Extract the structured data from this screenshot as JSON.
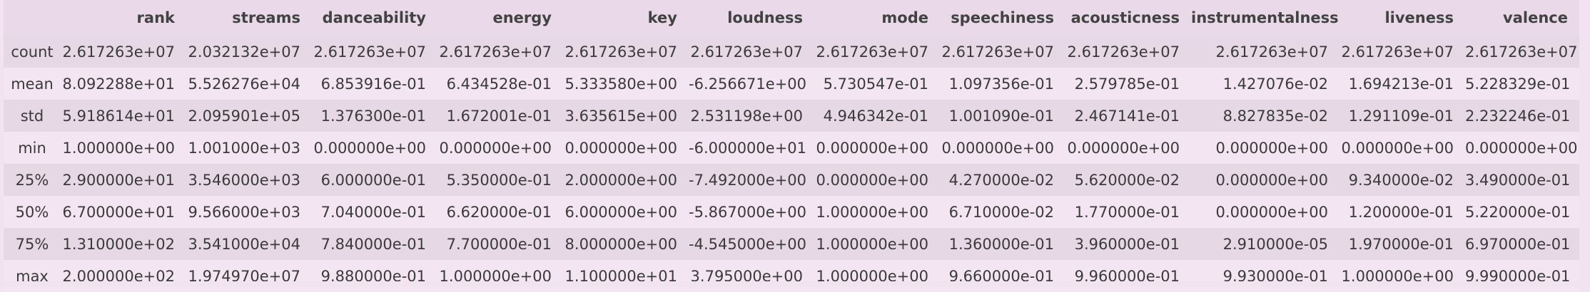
{
  "table": {
    "columns": [
      "",
      "rank",
      "streams",
      "danceability",
      "energy",
      "key",
      "loudness",
      "mode",
      "speechiness",
      "acousticness",
      "instrumentalness",
      "liveness",
      "valence"
    ],
    "rows": [
      {
        "label": "count",
        "values": [
          "2.617263e+07",
          "2.032132e+07",
          "2.617263e+07",
          "2.617263e+07",
          "2.617263e+07",
          "2.617263e+07",
          "2.617263e+07",
          "2.617263e+07",
          "2.617263e+07",
          "2.617263e+07",
          "2.617263e+07",
          "2.617263e+07"
        ]
      },
      {
        "label": "mean",
        "values": [
          "8.092288e+01",
          "5.526276e+04",
          "6.853916e-01",
          "6.434528e-01",
          "5.333580e+00",
          "-6.256671e+00",
          "5.730547e-01",
          "1.097356e-01",
          "2.579785e-01",
          "1.427076e-02",
          "1.694213e-01",
          "5.228329e-01"
        ]
      },
      {
        "label": "std",
        "values": [
          "5.918614e+01",
          "2.095901e+05",
          "1.376300e-01",
          "1.672001e-01",
          "3.635615e+00",
          "2.531198e+00",
          "4.946342e-01",
          "1.001090e-01",
          "2.467141e-01",
          "8.827835e-02",
          "1.291109e-01",
          "2.232246e-01"
        ]
      },
      {
        "label": "min",
        "values": [
          "1.000000e+00",
          "1.001000e+03",
          "0.000000e+00",
          "0.000000e+00",
          "0.000000e+00",
          "-6.000000e+01",
          "0.000000e+00",
          "0.000000e+00",
          "0.000000e+00",
          "0.000000e+00",
          "0.000000e+00",
          "0.000000e+00"
        ]
      },
      {
        "label": "25%",
        "values": [
          "2.900000e+01",
          "3.546000e+03",
          "6.000000e-01",
          "5.350000e-01",
          "2.000000e+00",
          "-7.492000e+00",
          "0.000000e+00",
          "4.270000e-02",
          "5.620000e-02",
          "0.000000e+00",
          "9.340000e-02",
          "3.490000e-01"
        ]
      },
      {
        "label": "50%",
        "values": [
          "6.700000e+01",
          "9.566000e+03",
          "7.040000e-01",
          "6.620000e-01",
          "6.000000e+00",
          "-5.867000e+00",
          "1.000000e+00",
          "6.710000e-02",
          "1.770000e-01",
          "0.000000e+00",
          "1.200000e-01",
          "5.220000e-01"
        ]
      },
      {
        "label": "75%",
        "values": [
          "1.310000e+02",
          "3.541000e+04",
          "7.840000e-01",
          "7.700000e-01",
          "8.000000e+00",
          "-4.545000e+00",
          "1.000000e+00",
          "1.360000e-01",
          "3.960000e-01",
          "2.910000e-05",
          "1.970000e-01",
          "6.970000e-01"
        ]
      },
      {
        "label": "max",
        "values": [
          "2.000000e+02",
          "1.974970e+07",
          "9.880000e-01",
          "1.000000e+00",
          "1.100000e+01",
          "3.795000e+00",
          "1.000000e+00",
          "9.660000e-01",
          "9.960000e-01",
          "9.930000e-01",
          "1.000000e+00",
          "9.990000e-01"
        ]
      }
    ]
  }
}
